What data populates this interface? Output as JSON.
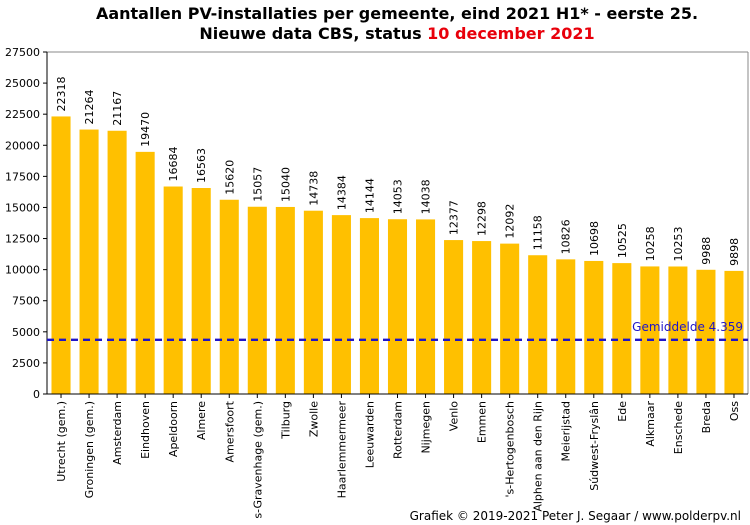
{
  "title_line1": "Aantallen PV-installaties  per gemeente, eind 2021 H1* - eerste 25.",
  "title_line2_prefix": "Nieuwe data CBS, status ",
  "title_line2_highlight": "10 december 2021",
  "credit": "Grafiek  © 2019-2021  Peter J. Segaar / www.polderpv.nl",
  "colors": {
    "bar": "#FFC000",
    "average_line": "#1e14c8",
    "highlight": "#e8000b"
  },
  "chart_data": {
    "type": "bar",
    "title": "Aantallen PV-installaties  per gemeente, eind 2021 H1* - eerste 25.",
    "subtitle": "Nieuwe data CBS, status 10 december 2021",
    "categories": [
      "Utrecht (gem.)",
      "Groningen (gem.)",
      "Amsterdam",
      "Eindhoven",
      "Apeldoorn",
      "Almere",
      "Amersfoort",
      "s-Gravenhage (gem.)",
      "Tilburg",
      "Zwolle",
      "Haarlemmermeer",
      "Leeuwarden",
      "Rotterdam",
      "Nijmegen",
      "Venlo",
      "Emmen",
      "'s-Hertogenbosch",
      "Alphen aan den Rijn",
      "Meierijstad",
      "Súdwest-Fryslân",
      "Ede",
      "Alkmaar",
      "Enschede",
      "Breda",
      "Oss"
    ],
    "values": [
      22318,
      21264,
      21167,
      19470,
      16684,
      16563,
      15620,
      15057,
      15040,
      14738,
      14384,
      14144,
      14053,
      14038,
      12377,
      12298,
      12092,
      11158,
      10826,
      10698,
      10525,
      10258,
      10253,
      9988,
      9898
    ],
    "ylim": [
      0,
      27500
    ],
    "yticks": [
      0,
      2500,
      5000,
      7500,
      10000,
      12500,
      15000,
      17500,
      20000,
      22500,
      25000,
      27500
    ],
    "average": {
      "label": "Gemiddelde  4.359",
      "value": 4359
    }
  }
}
